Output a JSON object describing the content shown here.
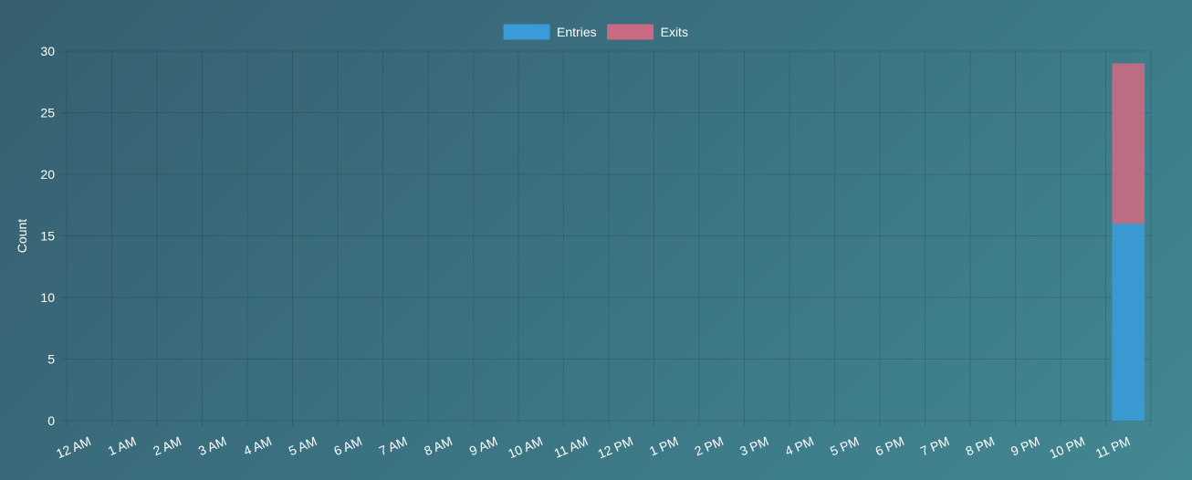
{
  "chart_data": {
    "type": "bar",
    "stacked": true,
    "categories": [
      "12 AM",
      "1 AM",
      "2 AM",
      "3 AM",
      "4 AM",
      "5 AM",
      "6 AM",
      "7 AM",
      "8 AM",
      "9 AM",
      "10 AM",
      "11 AM",
      "12 PM",
      "1 PM",
      "2 PM",
      "3 PM",
      "4 PM",
      "5 PM",
      "6 PM",
      "7 PM",
      "8 PM",
      "9 PM",
      "10 PM",
      "11 PM"
    ],
    "series": [
      {
        "name": "Entries",
        "color": "#3b9bd8",
        "values": [
          0,
          0,
          0,
          0,
          0,
          0,
          0,
          0,
          0,
          0,
          0,
          0,
          0,
          0,
          0,
          0,
          0,
          0,
          0,
          0,
          0,
          0,
          0,
          16
        ]
      },
      {
        "name": "Exits",
        "color": "#c76a82",
        "values": [
          0,
          0,
          0,
          0,
          0,
          0,
          0,
          0,
          0,
          0,
          0,
          0,
          0,
          0,
          0,
          0,
          0,
          0,
          0,
          0,
          0,
          0,
          0,
          13
        ]
      }
    ],
    "ylabel": "Count",
    "xlabel": "",
    "ylim": [
      0,
      30
    ],
    "yticks": [
      0,
      5,
      10,
      15,
      20,
      25,
      30
    ],
    "grid": true,
    "legend_position": "top-center"
  }
}
